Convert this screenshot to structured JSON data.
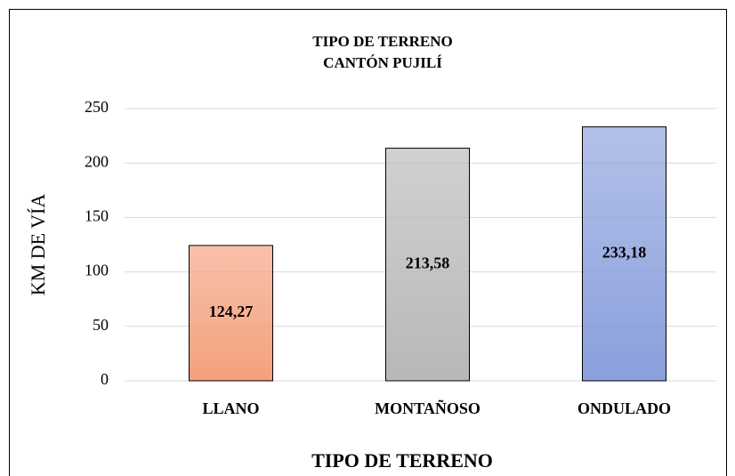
{
  "chart_data": {
    "type": "bar",
    "title": "TIPO DE TERRENO",
    "subtitle": "CANTÓN PUJILÍ",
    "categories": [
      "LLANO",
      "MONTAÑOSO",
      "ONDULADO"
    ],
    "values": [
      124.27,
      213.58,
      233.18
    ],
    "value_labels": [
      "124,27",
      "213,58",
      "233,18"
    ],
    "colors": [
      "#f4a07c",
      "#b8b8b8",
      "#8a9fdc"
    ],
    "ylabel": "KM DE VÍA",
    "xlabel": "TIPO DE TERRENO",
    "ylim": [
      0,
      250
    ],
    "yticks": [
      0,
      50,
      100,
      150,
      200,
      250
    ],
    "grid": true
  }
}
